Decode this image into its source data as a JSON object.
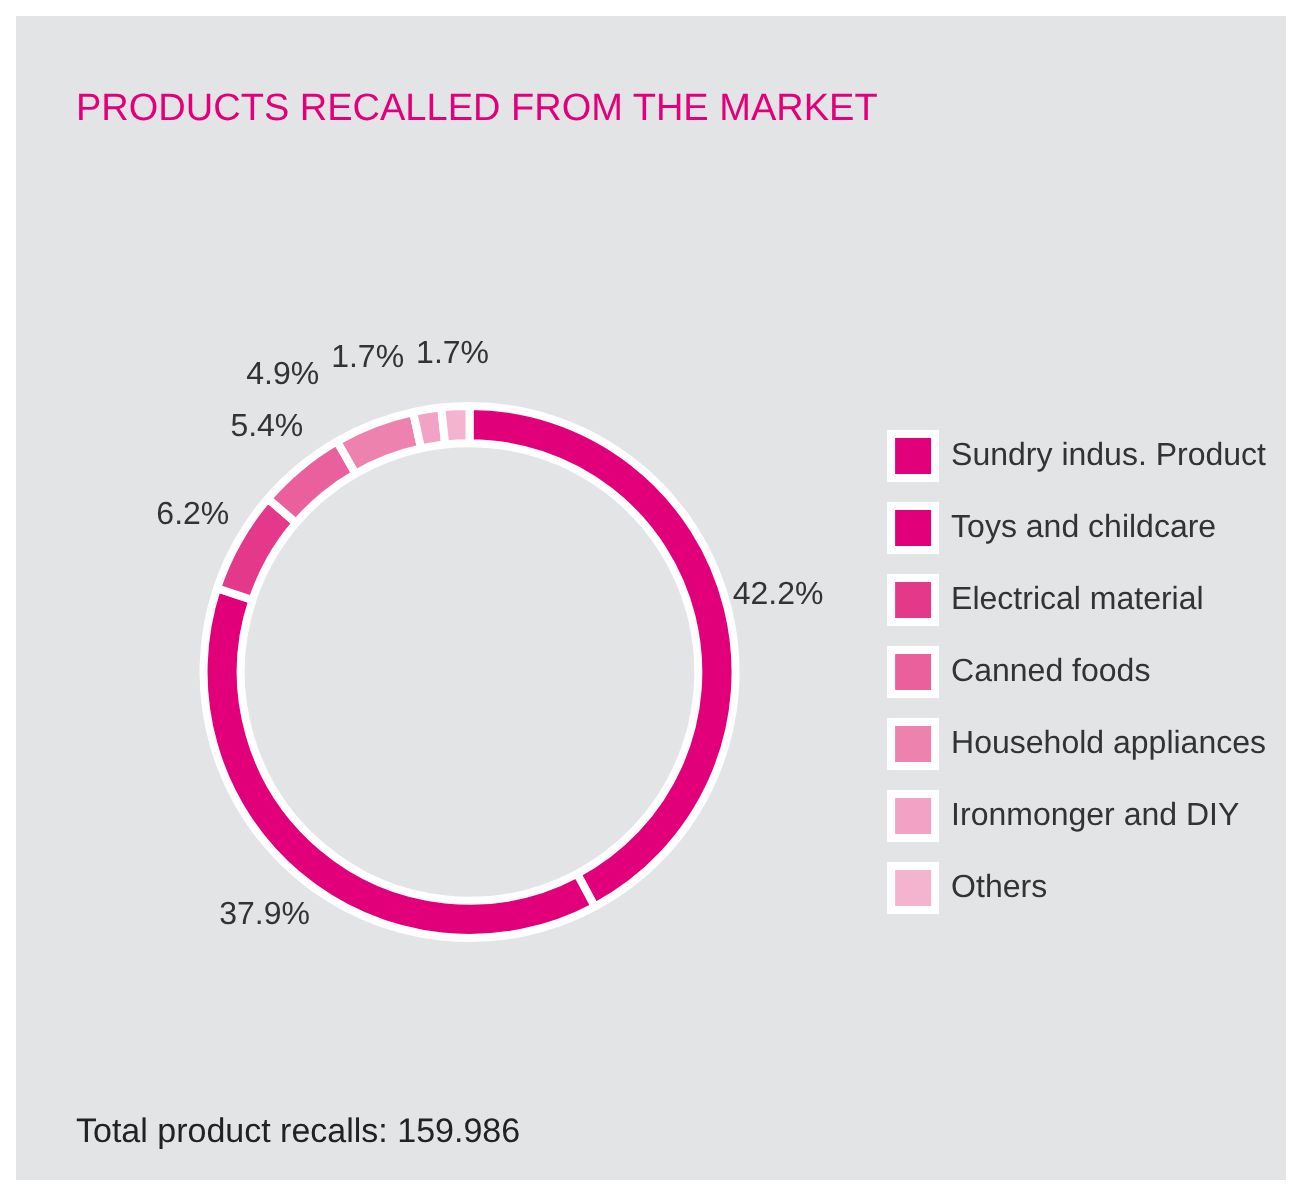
{
  "chart_data": {
    "type": "donut",
    "title": "PRODUCTS RECALLED FROM THE MARKET",
    "categories": [
      "Sundry indus. Product",
      "Toys and childcare",
      "Electrical material",
      "Canned foods",
      "Household appliances",
      "Ironmonger and DIY",
      "Others"
    ],
    "values": [
      42.2,
      37.9,
      6.2,
      5.4,
      4.9,
      1.7,
      1.7
    ],
    "value_labels": [
      "42.2%",
      "37.9%",
      "6.2%",
      "5.4%",
      "4.9%",
      "1.7%",
      "1.7%"
    ],
    "colors": [
      "#e2007a",
      "#e2007a",
      "#e4388a",
      "#e9609c",
      "#ee82ae",
      "#f2a2c4",
      "#f4b4d0"
    ],
    "legend": "right",
    "annotations": [
      "Total product recalls: 159.986"
    ]
  }
}
